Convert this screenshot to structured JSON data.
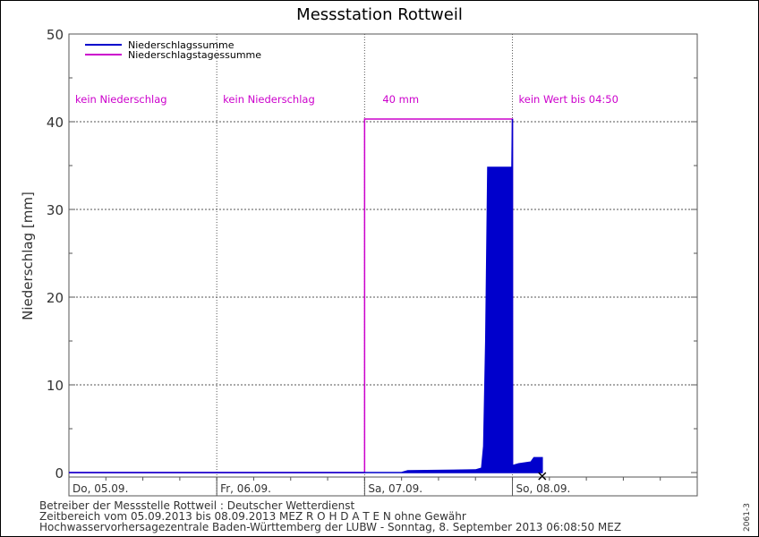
{
  "chart_data": {
    "type": "area",
    "title": "Messstation Rottweil",
    "ylabel": "Niederschlag [mm]",
    "xlabel": "",
    "ylim": [
      0,
      50
    ],
    "yticks": [
      0,
      10,
      20,
      30,
      40,
      50
    ],
    "xlim": [
      "05.09.2013 00:00",
      "09.09.2013 06:00"
    ],
    "day_labels": [
      "Do, 05.09.",
      "Fr, 06.09.",
      "Sa, 07.09.",
      "So, 08.09."
    ],
    "grid": true,
    "legend_position": "top-left",
    "series": [
      {
        "name": "Niederschlagssumme",
        "color": "#0000cc",
        "style": "filled",
        "points": [
          [
            "05.09.2013 00:00",
            0
          ],
          [
            "07.09.2013 06:00",
            0
          ],
          [
            "07.09.2013 07:00",
            0.2
          ],
          [
            "07.09.2013 18:00",
            0.3
          ],
          [
            "07.09.2013 19:00",
            0.5
          ],
          [
            "07.09.2013 19:20",
            3
          ],
          [
            "07.09.2013 19:40",
            15
          ],
          [
            "07.09.2013 20:00",
            34.8
          ],
          [
            "07.09.2013 23:55",
            34.8
          ],
          [
            "08.09.2013 00:00",
            40.3
          ],
          [
            "08.09.2013 00:01",
            0.8
          ],
          [
            "08.09.2013 01:00",
            1.0
          ],
          [
            "08.09.2013 03:00",
            1.2
          ],
          [
            "08.09.2013 03:30",
            1.7
          ],
          [
            "08.09.2013 04:50",
            1.7
          ]
        ]
      },
      {
        "name": "Niederschlagstagessumme",
        "color": "#cc00cc",
        "style": "step",
        "daily_values": [
          0,
          0,
          40.3
        ]
      }
    ],
    "annotations": [
      "kein Niederschlag",
      "kein Niederschlag",
      "40 mm",
      "kein Wert bis 04:50"
    ]
  },
  "footer": {
    "operator": "Betreiber der Messstelle Rottweil : Deutscher Wetterdienst",
    "range": "Zeitbereich vom 05.09.2013 bis 08.09.2013   MEZ    R O H D A T E N ohne Gewähr",
    "source": "Hochwasservorhersagezentrale Baden-Württemberg der LUBW - Sonntag, 8. September 2013 06:08:50 MEZ",
    "code": "2061-3"
  }
}
